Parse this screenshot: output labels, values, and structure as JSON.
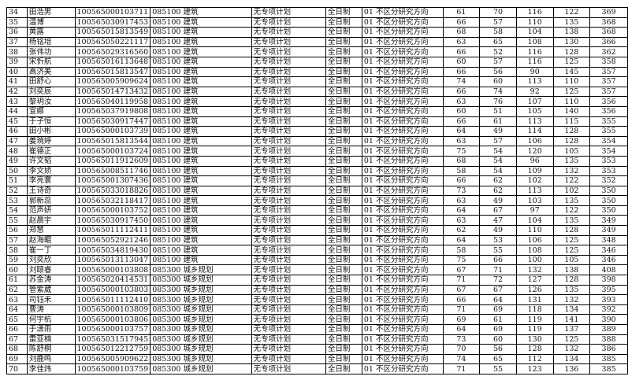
{
  "table": {
    "rows": [
      [
        "34",
        "田浩男",
        "100565000103711",
        "085100 建筑",
        "无专项计划",
        "全日制",
        "01 不区分研究方向",
        "61",
        "70",
        "116",
        "122",
        "369"
      ],
      [
        "35",
        "温博",
        "100565030917453",
        "085100 建筑",
        "无专项计划",
        "全日制",
        "01 不区分研究方向",
        "66",
        "57",
        "110",
        "135",
        "368"
      ],
      [
        "36",
        "黄露",
        "100565015813549",
        "085100 建筑",
        "无专项计划",
        "全日制",
        "01 不区分研究方向",
        "68",
        "58",
        "104",
        "138",
        "368"
      ],
      [
        "37",
        "杨铭培",
        "100565050221117",
        "085100 建筑",
        "无专项计划",
        "全日制",
        "01 不区分研究方向",
        "63",
        "65",
        "108",
        "130",
        "366"
      ],
      [
        "38",
        "张伟功",
        "100565029316560",
        "085100 建筑",
        "无专项计划",
        "全日制",
        "01 不区分研究方向",
        "66",
        "52",
        "116",
        "128",
        "362"
      ],
      [
        "39",
        "宋忻航",
        "100565016113648",
        "085100 建筑",
        "无专项计划",
        "全日制",
        "01 不区分研究方向",
        "60",
        "57",
        "116",
        "125",
        "358"
      ],
      [
        "40",
        "高济美",
        "100565015813547",
        "085100 建筑",
        "无专项计划",
        "全日制",
        "01 不区分研究方向",
        "66",
        "56",
        "90",
        "145",
        "357"
      ],
      [
        "41",
        "田舒心",
        "100565005909624",
        "085100 建筑",
        "无专项计划",
        "全日制",
        "01 不区分研究方向",
        "74",
        "60",
        "113",
        "110",
        "357"
      ],
      [
        "42",
        "刘奕辰",
        "100565014713432",
        "085100 建筑",
        "无专项计划",
        "全日制",
        "01 不区分研究方向",
        "66",
        "74",
        "92",
        "125",
        "357"
      ],
      [
        "43",
        "黎玥汝",
        "100565040119958",
        "085100 建筑",
        "无专项计划",
        "全日制",
        "01 不区分研究方向",
        "63",
        "76",
        "107",
        "110",
        "356"
      ],
      [
        "44",
        "宣娜",
        "100565037919808",
        "085100 建筑",
        "无专项计划",
        "全日制",
        "01 不区分研究方向",
        "60",
        "51",
        "105",
        "140",
        "356"
      ],
      [
        "45",
        "于子恒",
        "100565030917447",
        "085100 建筑",
        "无专项计划",
        "全日制",
        "01 不区分研究方向",
        "66",
        "61",
        "113",
        "115",
        "355"
      ],
      [
        "46",
        "田小彬",
        "100565000103739",
        "085100 建筑",
        "无专项计划",
        "全日制",
        "01 不区分研究方向",
        "64",
        "49",
        "114",
        "128",
        "355"
      ],
      [
        "47",
        "姜琬婷",
        "100565015813544",
        "085100 建筑",
        "无专项计划",
        "全日制",
        "01 不区分研究方向",
        "63",
        "57",
        "106",
        "128",
        "354"
      ],
      [
        "48",
        "崔德正",
        "100565000103724",
        "085100 建筑",
        "无专项计划",
        "全日制",
        "01 不区分研究方向",
        "75",
        "54",
        "120",
        "105",
        "354"
      ],
      [
        "49",
        "许文韬",
        "100565011912609",
        "085100 建筑",
        "无专项计划",
        "全日制",
        "01 不区分研究方向",
        "68",
        "54",
        "96",
        "135",
        "353"
      ],
      [
        "50",
        "李文娇",
        "100565008511746",
        "085100 建筑",
        "无专项计划",
        "全日制",
        "01 不区分研究方向",
        "58",
        "54",
        "109",
        "132",
        "353"
      ],
      [
        "51",
        "李亮寰",
        "100565001307436",
        "085100 建筑",
        "无专项计划",
        "全日制",
        "01 不区分研究方向",
        "66",
        "62",
        "102",
        "122",
        "352"
      ],
      [
        "52",
        "王诗奇",
        "100565033018826",
        "085100 建筑",
        "无专项计划",
        "全日制",
        "01 不区分研究方向",
        "73",
        "62",
        "113",
        "102",
        "350"
      ],
      [
        "53",
        "郭新蕊",
        "100565032118417",
        "085100 建筑",
        "无专项计划",
        "全日制",
        "01 不区分研究方向",
        "63",
        "49",
        "103",
        "135",
        "350"
      ],
      [
        "54",
        "范声妍",
        "100565000103752",
        "085100 建筑",
        "无专项计划",
        "全日制",
        "01 不区分研究方向",
        "64",
        "67",
        "97",
        "122",
        "350"
      ],
      [
        "55",
        "赵晨宇",
        "100565030917450",
        "085100 建筑",
        "无专项计划",
        "全日制",
        "01 不区分研究方向",
        "63",
        "47",
        "104",
        "135",
        "349"
      ],
      [
        "56",
        "郑慧",
        "100565011112411",
        "085100 建筑",
        "无专项计划",
        "全日制",
        "01 不区分研究方向",
        "62",
        "49",
        "110",
        "128",
        "349"
      ],
      [
        "57",
        "赵海鲲",
        "100565052921246",
        "085100 建筑",
        "无专项计划",
        "全日制",
        "01 不区分研究方向",
        "64",
        "53",
        "106",
        "125",
        "348"
      ],
      [
        "58",
        "崔一丁",
        "100565034819430",
        "085100 建筑",
        "无专项计划",
        "全日制",
        "01 不区分研究方向",
        "58",
        "55",
        "108",
        "125",
        "346"
      ],
      [
        "59",
        "刘奕欣",
        "100565013113047",
        "085100 建筑",
        "无专项计划",
        "全日制",
        "01 不区分研究方向",
        "75",
        "66",
        "100",
        "105",
        "346"
      ],
      [
        "60",
        "刘赜睿",
        "100565000103808",
        "085300 城乡规划",
        "无专项计划",
        "全日制",
        "01 不区分研究方向",
        "67",
        "71",
        "132",
        "138",
        "408"
      ],
      [
        "61",
        "苏金涛",
        "100565020414531",
        "085300 城乡规划",
        "无专项计划",
        "全日制",
        "01 不区分研究方向",
        "71",
        "72",
        "127",
        "128",
        "398"
      ],
      [
        "62",
        "管紫葳",
        "100565000103803",
        "085300 城乡规划",
        "无专项计划",
        "全日制",
        "01 不区分研究方向",
        "67",
        "67",
        "126",
        "135",
        "395"
      ],
      [
        "63",
        "司钰禾",
        "100565011112410",
        "085300 城乡规划",
        "无专项计划",
        "全日制",
        "01 不区分研究方向",
        "66",
        "64",
        "131",
        "132",
        "393"
      ],
      [
        "64",
        "曹涛",
        "100565000103809",
        "085300 城乡规划",
        "无专项计划",
        "全日制",
        "01 不区分研究方向",
        "71",
        "69",
        "118",
        "134",
        "392"
      ],
      [
        "65",
        "何宇杭",
        "100565000103806",
        "085300 城乡规划",
        "无专项计划",
        "全日制",
        "01 不区分研究方向",
        "69",
        "61",
        "119",
        "141",
        "390"
      ],
      [
        "66",
        "于潇雨",
        "100565000103757",
        "085300 城乡规划",
        "无专项计划",
        "全日制",
        "01 不区分研究方向",
        "64",
        "69",
        "119",
        "137",
        "389"
      ],
      [
        "67",
        "雷亚楠",
        "100565031517945",
        "085300 城乡规划",
        "无专项计划",
        "全日制",
        "01 不区分研究方向",
        "73",
        "60",
        "130",
        "125",
        "388"
      ],
      [
        "68",
        "陈舒桐",
        "100565012212759",
        "085300 城乡规划",
        "无专项计划",
        "全日制",
        "01 不区分研究方向",
        "70",
        "56",
        "128",
        "132",
        "386"
      ],
      [
        "69",
        "刘鹿鸣",
        "100565005909622",
        "085300 城乡规划",
        "无专项计划",
        "全日制",
        "01 不区分研究方向",
        "74",
        "65",
        "112",
        "134",
        "385"
      ],
      [
        "70",
        "李佳炜",
        "100565000103759",
        "085300 城乡规划",
        "无专项计划",
        "全日制",
        "01 不区分研究方向",
        "71",
        "55",
        "123",
        "136",
        "385"
      ]
    ]
  }
}
